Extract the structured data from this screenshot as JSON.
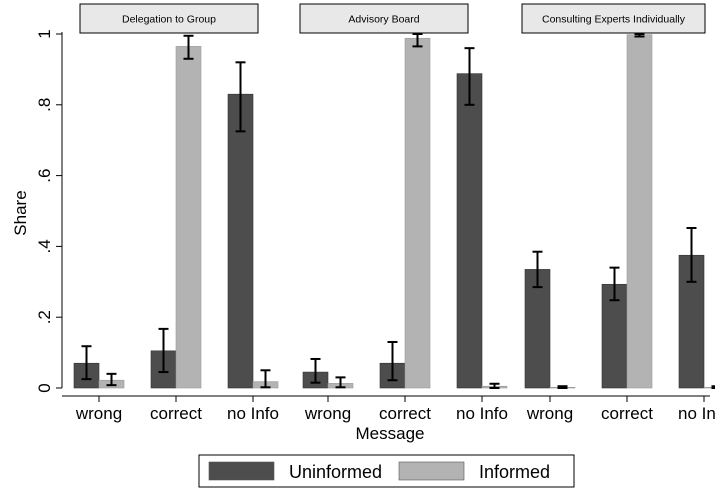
{
  "chart_data": {
    "type": "bar",
    "xlabel": "Message",
    "ylabel": "Share",
    "ylim": [
      0,
      1
    ],
    "yticks": [
      0,
      0.2,
      0.4,
      0.6,
      0.8,
      1
    ],
    "ytick_labels": [
      "0",
      ".2",
      ".4",
      ".6",
      ".8",
      "1"
    ],
    "categories": [
      "wrong",
      "correct",
      "no Info"
    ],
    "legend": {
      "position": "bottom",
      "entries": [
        "Uninformed",
        "Informed"
      ]
    },
    "colors": {
      "Uninformed": "#4d4d4d",
      "Informed": "#b3b3b3"
    },
    "panels": [
      {
        "title": "Delegation to Group",
        "series": [
          {
            "name": "Uninformed",
            "values": [
              0.07,
              0.105,
              0.83
            ],
            "ci_low": [
              0.025,
              0.045,
              0.725
            ],
            "ci_high": [
              0.118,
              0.167,
              0.92
            ]
          },
          {
            "name": "Informed",
            "values": [
              0.022,
              0.965,
              0.018
            ],
            "ci_low": [
              0.008,
              0.93,
              0.002
            ],
            "ci_high": [
              0.04,
              0.995,
              0.05
            ]
          }
        ]
      },
      {
        "title": "Advisory Board",
        "series": [
          {
            "name": "Uninformed",
            "values": [
              0.045,
              0.07,
              0.888
            ],
            "ci_low": [
              0.015,
              0.022,
              0.8
            ],
            "ci_high": [
              0.082,
              0.13,
              0.96
            ]
          },
          {
            "name": "Informed",
            "values": [
              0.013,
              0.988,
              0.005
            ],
            "ci_low": [
              0.002,
              0.965,
              0.0
            ],
            "ci_high": [
              0.03,
              1.0,
              0.012
            ]
          }
        ]
      },
      {
        "title": "Consulting Experts Individually",
        "series": [
          {
            "name": "Uninformed",
            "values": [
              0.335,
              0.293,
              0.375
            ],
            "ci_low": [
              0.285,
              0.248,
              0.3
            ],
            "ci_high": [
              0.385,
              0.34,
              0.452
            ]
          },
          {
            "name": "Informed",
            "values": [
              0.002,
              0.998,
              0.002
            ],
            "ci_low": [
              0.0,
              0.993,
              0.0
            ],
            "ci_high": [
              0.005,
              1.0,
              0.005
            ]
          }
        ]
      }
    ]
  }
}
